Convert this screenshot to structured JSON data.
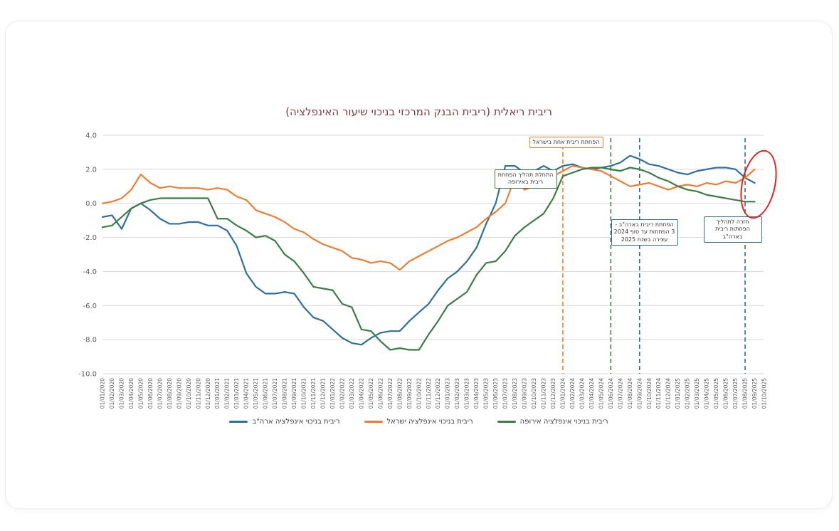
{
  "chart": {
    "title": "ריבית ריאלית (ריבית הבנק המרכזי בניכוי שיעור האינפלציה)"
  },
  "chart_data": {
    "type": "line",
    "title": "ריבית ריאלית (ריבית הבנק המרכזי בניכוי שיעור האינפלציה)",
    "ylim": [
      -10,
      4
    ],
    "ytick_step": 2,
    "grid": true,
    "legend_position": "bottom",
    "categories": [
      "01/01/2020",
      "01/02/2020",
      "01/03/2020",
      "01/04/2020",
      "01/05/2020",
      "01/06/2020",
      "01/07/2020",
      "01/08/2020",
      "01/09/2020",
      "01/10/2020",
      "01/11/2020",
      "01/12/2020",
      "01/01/2021",
      "01/02/2021",
      "01/03/2021",
      "01/04/2021",
      "01/05/2021",
      "01/06/2021",
      "01/07/2021",
      "01/08/2021",
      "01/09/2021",
      "01/10/2021",
      "01/11/2021",
      "01/12/2021",
      "01/01/2022",
      "01/02/2022",
      "01/03/2022",
      "01/04/2022",
      "01/05/2022",
      "01/06/2022",
      "01/07/2022",
      "01/08/2022",
      "01/09/2022",
      "01/10/2022",
      "01/11/2022",
      "01/12/2022",
      "01/01/2023",
      "01/02/2023",
      "01/03/2023",
      "01/04/2023",
      "01/05/2023",
      "01/06/2023",
      "01/07/2023",
      "01/08/2023",
      "01/09/2023",
      "01/10/2023",
      "01/11/2023",
      "01/12/2023",
      "01/01/2024",
      "01/02/2024",
      "01/03/2024",
      "01/04/2024",
      "01/05/2024",
      "01/06/2024",
      "01/07/2024",
      "01/08/2024",
      "01/09/2024",
      "01/10/2024",
      "01/11/2024",
      "01/12/2024",
      "01/01/2025",
      "01/02/2025",
      "01/03/2025",
      "01/04/2025",
      "01/05/2025",
      "01/06/2025",
      "01/07/2025",
      "01/08/2025",
      "01/09/2025",
      "01/10/2025"
    ],
    "series": [
      {
        "name": "ריבית בניכוי אינפלציה ארה\"ב",
        "color": "#2e6f9e",
        "values": [
          -0.8,
          -0.7,
          -1.5,
          -0.3,
          0.0,
          -0.4,
          -0.9,
          -1.2,
          -1.2,
          -1.1,
          -1.1,
          -1.3,
          -1.3,
          -1.6,
          -2.5,
          -4.1,
          -4.9,
          -5.3,
          -5.3,
          -5.2,
          -5.3,
          -6.1,
          -6.7,
          -6.9,
          -7.4,
          -7.9,
          -8.2,
          -8.3,
          -7.9,
          -7.6,
          -7.5,
          -7.5,
          -6.9,
          -6.4,
          -5.9,
          -5.1,
          -4.4,
          -4.0,
          -3.4,
          -2.6,
          -1.2,
          0.0,
          2.2,
          2.2,
          1.8,
          1.9,
          2.2,
          1.9,
          2.2,
          2.3,
          2.1,
          2.0,
          2.1,
          2.2,
          2.4,
          2.8,
          2.6,
          2.3,
          2.2,
          2.0,
          1.8,
          1.7,
          1.9,
          2.0,
          2.1,
          2.1,
          2.0,
          1.5,
          1.2,
          null
        ]
      },
      {
        "name": "ריבית בניכוי אינפלציה ישראל",
        "color": "#ed7d31",
        "values": [
          0.0,
          0.1,
          0.3,
          0.8,
          1.7,
          1.2,
          0.9,
          1.0,
          0.9,
          0.9,
          0.9,
          0.8,
          0.9,
          0.8,
          0.4,
          0.2,
          -0.4,
          -0.6,
          -0.8,
          -1.1,
          -1.5,
          -1.7,
          -2.1,
          -2.4,
          -2.6,
          -2.8,
          -3.2,
          -3.3,
          -3.5,
          -3.4,
          -3.5,
          -3.9,
          -3.4,
          -3.1,
          -2.8,
          -2.5,
          -2.2,
          -2.0,
          -1.7,
          -1.4,
          -0.9,
          -0.5,
          0.0,
          1.5,
          0.8,
          1.0,
          1.3,
          1.6,
          1.9,
          2.2,
          2.1,
          2.0,
          1.9,
          1.6,
          1.3,
          1.0,
          1.1,
          1.2,
          1.0,
          0.8,
          1.0,
          1.1,
          1.0,
          1.2,
          1.1,
          1.3,
          1.2,
          1.5,
          2.0,
          null
        ]
      },
      {
        "name": "ריבית בניכוי אינפלציה אירופה",
        "color": "#3a7d44",
        "values": [
          -1.4,
          -1.3,
          -0.8,
          -0.3,
          0.0,
          0.2,
          0.3,
          0.3,
          0.3,
          0.3,
          0.3,
          0.3,
          -0.9,
          -0.9,
          -1.3,
          -1.6,
          -2.0,
          -1.9,
          -2.2,
          -3.0,
          -3.4,
          -4.1,
          -4.9,
          -5.0,
          -5.1,
          -5.9,
          -6.1,
          -7.4,
          -7.5,
          -8.1,
          -8.6,
          -8.5,
          -8.6,
          -8.6,
          -7.7,
          -6.9,
          -6.0,
          -5.6,
          -5.2,
          -4.2,
          -3.5,
          -3.4,
          -2.8,
          -1.9,
          -1.4,
          -1.0,
          -0.6,
          0.3,
          1.6,
          1.8,
          2.0,
          2.1,
          2.1,
          2.0,
          1.9,
          2.1,
          2.0,
          1.8,
          1.5,
          1.3,
          1.0,
          0.8,
          0.7,
          0.5,
          0.4,
          0.3,
          0.2,
          0.1,
          0.1,
          null
        ]
      }
    ],
    "annotations": [
      {
        "type": "vline",
        "category": "01/01/2024",
        "color": "#ed7d31",
        "label": "הפחתת ריבית אחת בישראל"
      },
      {
        "type": "vline",
        "category": "01/06/2024",
        "color": "#3a7d44",
        "label": "התחלת תהליך הפחתת ריבית באירופה"
      },
      {
        "type": "vline",
        "category": "01/09/2024",
        "color": "#2e6f9e",
        "label": "הפחתת ריבית בארה\"ב - 3 הפחתות עד סוף 2024 עצירה בשנת 2025"
      },
      {
        "type": "vline",
        "category": "01/08/2025",
        "color": "#2e6f9e",
        "label": "חזרה לתהליך הפחתות ריבית בארה\"ב"
      },
      {
        "type": "ellipse",
        "color": "#e0201a",
        "note": "red circle highlighting latest data points"
      }
    ]
  }
}
